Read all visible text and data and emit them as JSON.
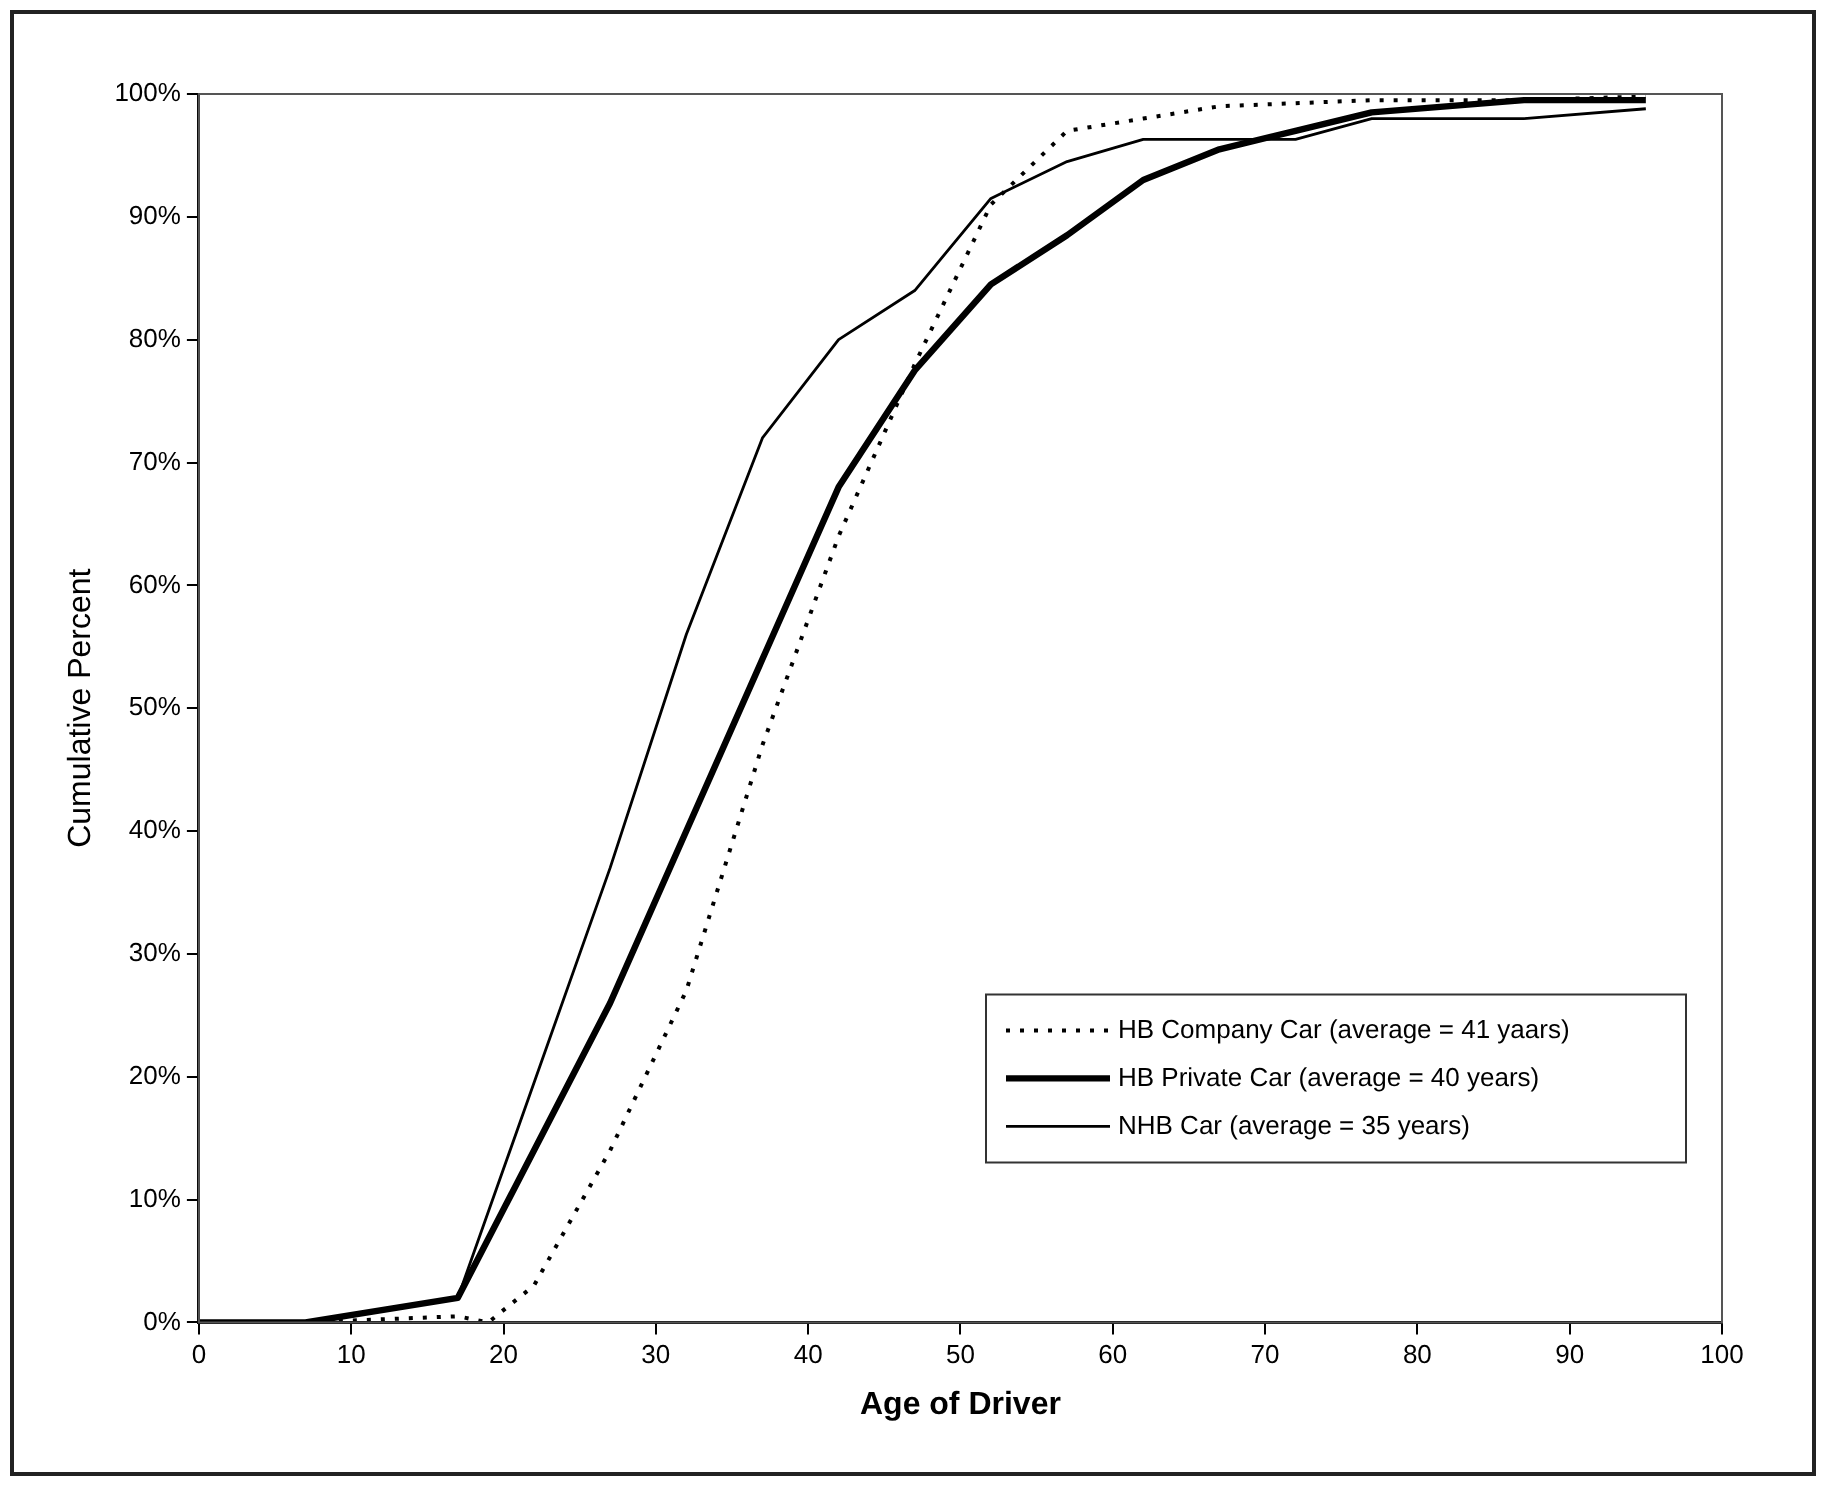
{
  "chart_data": {
    "type": "line",
    "xlabel": "Age of Driver",
    "ylabel": "Cumulative Percent",
    "xlim": [
      0,
      100
    ],
    "xticks": [
      0,
      10,
      20,
      30,
      40,
      50,
      60,
      70,
      80,
      90,
      100
    ],
    "ylim": [
      0,
      100
    ],
    "yticks": [
      {
        "value": 0,
        "label": "0%"
      },
      {
        "value": 10,
        "label": "10%"
      },
      {
        "value": 20,
        "label": "20%"
      },
      {
        "value": 30,
        "label": "30%"
      },
      {
        "value": 40,
        "label": "40%"
      },
      {
        "value": 50,
        "label": "50%"
      },
      {
        "value": 60,
        "label": "60%"
      },
      {
        "value": 70,
        "label": "70%"
      },
      {
        "value": 80,
        "label": "80%"
      },
      {
        "value": 90,
        "label": "90%"
      },
      {
        "value": 100,
        "label": "100%"
      }
    ],
    "grid": false,
    "legend": "bottom right",
    "marker": "none",
    "series": [
      {
        "name": "HB Company Car (average = 41 yaars)",
        "color": "#000000",
        "line_style": "dotted",
        "x": [
          0,
          7,
          17,
          19,
          22,
          27,
          32,
          37,
          42,
          47,
          52,
          57,
          62,
          67,
          77,
          87,
          95
        ],
        "values": [
          0,
          0,
          0.5,
          0,
          3,
          14,
          27,
          47,
          64,
          78,
          91,
          97,
          98,
          99,
          99.5,
          99.5,
          99.8
        ]
      },
      {
        "name": "HB Private Car (average = 40 years)",
        "color": "#000000",
        "line_style": "solid",
        "x": [
          0,
          7,
          17,
          27,
          32,
          37,
          42,
          47,
          52,
          57,
          62,
          67,
          72,
          77,
          87,
          95
        ],
        "values": [
          0,
          0,
          2,
          26,
          40,
          54,
          68,
          77.5,
          84.5,
          88.5,
          93,
          95.5,
          97,
          98.5,
          99.5,
          99.5
        ]
      },
      {
        "name": "NHB Car (average = 35 years)",
        "color": "#000000",
        "line_style": "solid",
        "x": [
          0,
          7,
          17,
          27,
          32,
          37,
          42,
          47,
          52,
          57,
          62,
          72,
          77,
          87,
          95
        ],
        "values": [
          0,
          0,
          2,
          37,
          56,
          72,
          80,
          84,
          91.5,
          94.5,
          96.3,
          96.3,
          98,
          98,
          98.8
        ]
      }
    ]
  }
}
